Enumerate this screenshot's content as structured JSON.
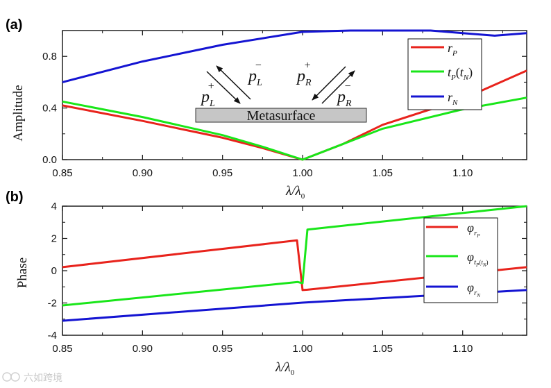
{
  "panels": {
    "a": {
      "label": "(a)"
    },
    "b": {
      "label": "(b)"
    }
  },
  "watermark": "六如跨境",
  "chart_data": [
    {
      "type": "line",
      "panel": "(a)",
      "xlabel": "λ/λ0",
      "ylabel": "Amplitude",
      "xlim": [
        0.85,
        1.14
      ],
      "ylim": [
        0.0,
        1.0
      ],
      "xticks": [
        "0.85",
        "0.90",
        "0.95",
        "1.00",
        "1.05",
        "1.10"
      ],
      "yticks": [
        "0.0",
        "0.4",
        "0.8"
      ],
      "legend_position": "top-right",
      "annotation": {
        "box_label": "Metasurface",
        "arrows": [
          "p_L^+",
          "p_L^-",
          "p_R^+",
          "p_R^-"
        ]
      },
      "series": [
        {
          "name": "r_P",
          "color": "#e8231c",
          "x": [
            0.85,
            0.9,
            0.95,
            0.975,
            1.0,
            1.025,
            1.05,
            1.1,
            1.14
          ],
          "y": [
            0.42,
            0.3,
            0.17,
            0.09,
            0.0,
            0.12,
            0.27,
            0.47,
            0.69
          ]
        },
        {
          "name": "t_P(t_N)",
          "color": "#19e619",
          "x": [
            0.85,
            0.9,
            0.95,
            0.975,
            1.0,
            1.025,
            1.05,
            1.1,
            1.14
          ],
          "y": [
            0.45,
            0.33,
            0.19,
            0.1,
            0.0,
            0.12,
            0.24,
            0.39,
            0.48
          ]
        },
        {
          "name": "r_N",
          "color": "#1414d2",
          "x": [
            0.85,
            0.9,
            0.95,
            1.0,
            1.03,
            1.05,
            1.08,
            1.1,
            1.12,
            1.14
          ],
          "y": [
            0.6,
            0.76,
            0.89,
            0.99,
            1.03,
            1.03,
            1.01,
            0.98,
            0.96,
            0.98
          ]
        }
      ]
    },
    {
      "type": "line",
      "panel": "(b)",
      "xlabel": "λ/λ0",
      "ylabel": "Phase",
      "xlim": [
        0.85,
        1.14
      ],
      "ylim": [
        -4,
        4
      ],
      "xticks": [
        "0.85",
        "0.90",
        "0.95",
        "1.00",
        "1.05",
        "1.10"
      ],
      "yticks": [
        "-4",
        "-2",
        "0",
        "2",
        "4"
      ],
      "legend_position": "top-right",
      "series": [
        {
          "name": "φ_rP",
          "color": "#e8231c",
          "x": [
            0.85,
            0.9965,
            1.0,
            1.003,
            1.14
          ],
          "y": [
            0.22,
            1.88,
            -1.2,
            -1.18,
            0.22
          ]
        },
        {
          "name": "φ_tP(tN)",
          "color": "#19e619",
          "x": [
            0.85,
            0.997,
            1.0,
            1.003,
            1.14
          ],
          "y": [
            -2.15,
            -0.7,
            -0.78,
            2.55,
            4.05
          ]
        },
        {
          "name": "φ_rN",
          "color": "#1414d2",
          "x": [
            0.85,
            1.0,
            1.14
          ],
          "y": [
            -3.1,
            -1.98,
            -1.2
          ]
        }
      ]
    }
  ]
}
